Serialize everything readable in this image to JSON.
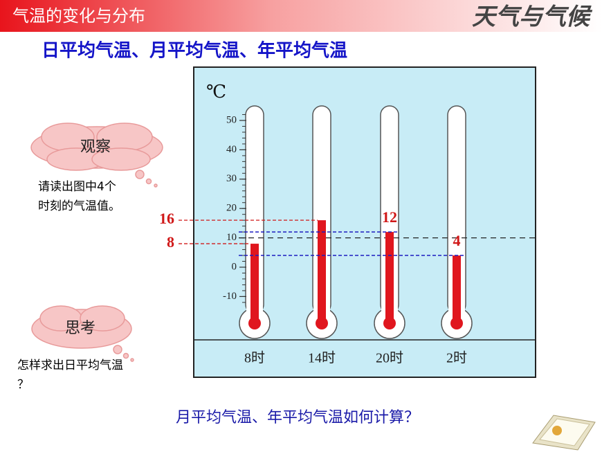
{
  "header": {
    "section": "气温的变化与分布",
    "topic": "天气与气候"
  },
  "subtitle": "日平均气温、月平均气温、年平均气温",
  "observe": {
    "bubble": "观察",
    "lines": [
      "请读出图中4个",
      "时刻的气温值。"
    ]
  },
  "think": {
    "bubble": "思考",
    "lines": [
      "怎样求出日平均气温",
      "？"
    ]
  },
  "question": "月平均气温、年平均气温如何计算？",
  "chart_data": {
    "type": "thermometer",
    "unit": "℃",
    "categories": [
      "8时",
      "14时",
      "20时",
      "2时"
    ],
    "values": [
      8,
      16,
      12,
      4
    ],
    "reference_line": 10,
    "ylim": [
      -15,
      55
    ],
    "yticks": [
      -10,
      0,
      10,
      20,
      30,
      40,
      50
    ],
    "mercury_color": "#e0161e",
    "label_color": "#d01818"
  }
}
